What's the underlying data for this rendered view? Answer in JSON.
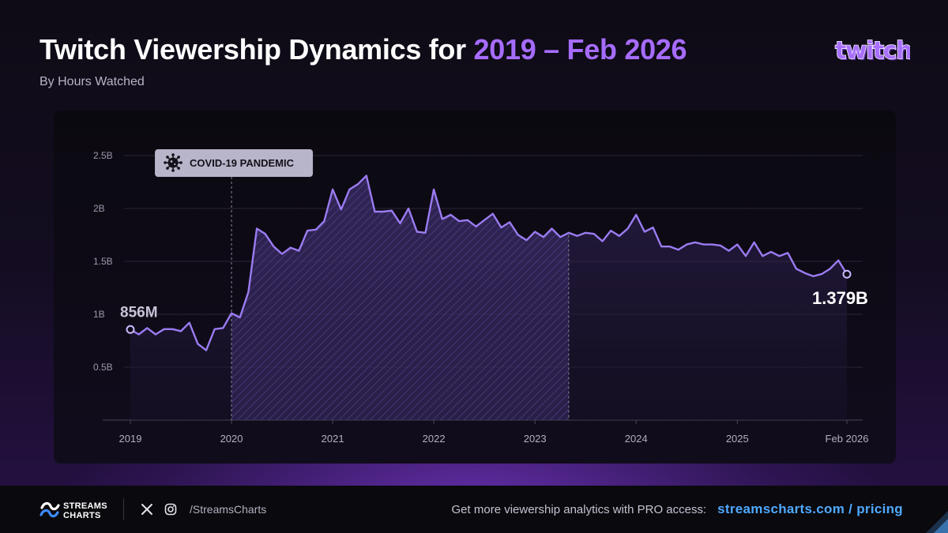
{
  "header": {
    "title_main": "Twitch Viewership Dynamics for ",
    "title_accent": "2019 – Feb 2026",
    "subtitle": "By Hours Watched",
    "logo": "twitch-logo"
  },
  "colors": {
    "accent": "#a66cff",
    "line": "#9b7cf2",
    "link": "#4fa9ff",
    "annotation_bg": "#b8b4c9"
  },
  "chart_data": {
    "type": "area",
    "title": "Twitch Viewership Dynamics for 2019 – Feb 2026",
    "subtitle": "By Hours Watched",
    "xlabel": "",
    "ylabel": "",
    "xlim": [
      "2019-01",
      "2026-02"
    ],
    "ylim": [
      0,
      2.5
    ],
    "y_ticks": [
      {
        "value": 0.5,
        "label": "0.5B"
      },
      {
        "value": 1,
        "label": "1B"
      },
      {
        "value": 1.5,
        "label": "1.5B"
      },
      {
        "value": 2,
        "label": "2B"
      },
      {
        "value": 2.5,
        "label": "2.5B"
      }
    ],
    "x_ticks": [
      {
        "value": "2019-01",
        "label": "2019"
      },
      {
        "value": "2020-01",
        "label": "2020"
      },
      {
        "value": "2021-01",
        "label": "2021"
      },
      {
        "value": "2022-01",
        "label": "2022"
      },
      {
        "value": "2023-01",
        "label": "2023"
      },
      {
        "value": "2024-01",
        "label": "2024"
      },
      {
        "value": "2025-01",
        "label": "2025"
      },
      {
        "value": "2026-02",
        "label": "Feb 2026"
      }
    ],
    "grid": true,
    "unit": "billion hours",
    "series": [
      {
        "x": [
          "2019-01",
          "2019-02",
          "2019-03",
          "2019-04",
          "2019-05",
          "2019-06",
          "2019-07",
          "2019-08",
          "2019-09",
          "2019-10",
          "2019-11",
          "2019-12",
          "2020-01",
          "2020-02",
          "2020-03",
          "2020-04",
          "2020-05",
          "2020-06",
          "2020-07",
          "2020-08",
          "2020-09",
          "2020-10",
          "2020-11",
          "2020-12",
          "2021-01",
          "2021-02",
          "2021-03",
          "2021-04",
          "2021-05",
          "2021-06",
          "2021-07",
          "2021-08",
          "2021-09",
          "2021-10",
          "2021-11",
          "2021-12",
          "2022-01",
          "2022-02",
          "2022-03",
          "2022-04",
          "2022-05",
          "2022-06",
          "2022-07",
          "2022-08",
          "2022-09",
          "2022-10",
          "2022-11",
          "2022-12",
          "2023-01",
          "2023-02",
          "2023-03",
          "2023-04",
          "2023-05",
          "2023-06",
          "2023-07",
          "2023-08",
          "2023-09",
          "2023-10",
          "2023-11",
          "2023-12",
          "2024-01",
          "2024-02",
          "2024-03",
          "2024-04",
          "2024-05",
          "2024-06",
          "2024-07",
          "2024-08",
          "2024-09",
          "2024-10",
          "2024-11",
          "2024-12",
          "2025-01",
          "2025-02",
          "2025-03",
          "2025-04",
          "2025-05",
          "2025-06",
          "2025-07",
          "2025-08",
          "2025-09",
          "2025-10",
          "2025-11",
          "2025-12",
          "2026-01",
          "2026-02"
        ],
        "values": [
          0.856,
          0.81,
          0.87,
          0.81,
          0.86,
          0.86,
          0.84,
          0.92,
          0.72,
          0.66,
          0.86,
          0.87,
          1.01,
          0.97,
          1.21,
          1.81,
          1.76,
          1.64,
          1.57,
          1.63,
          1.6,
          1.79,
          1.8,
          1.88,
          2.18,
          1.99,
          2.18,
          2.23,
          2.31,
          1.97,
          1.97,
          1.98,
          1.86,
          2.0,
          1.78,
          1.77,
          2.18,
          1.9,
          1.94,
          1.88,
          1.89,
          1.83,
          1.89,
          1.95,
          1.82,
          1.87,
          1.75,
          1.7,
          1.78,
          1.73,
          1.81,
          1.73,
          1.77,
          1.74,
          1.77,
          1.76,
          1.69,
          1.79,
          1.74,
          1.81,
          1.94,
          1.78,
          1.82,
          1.64,
          1.64,
          1.61,
          1.66,
          1.68,
          1.66,
          1.66,
          1.65,
          1.6,
          1.66,
          1.55,
          1.68,
          1.55,
          1.59,
          1.55,
          1.58,
          1.43,
          1.39,
          1.36,
          1.38,
          1.43,
          1.51,
          1.379
        ]
      }
    ],
    "labels": {
      "start": "856M",
      "end": "1.379B"
    },
    "annotations": [
      {
        "text": "COVID-19 PANDEMIC",
        "icon": "virus-icon",
        "period": [
          "2020-01",
          "2023-05"
        ]
      }
    ]
  },
  "footer": {
    "brand_line1": "STREAMS",
    "brand_line2": "CHARTS",
    "handle": "/StreamsCharts",
    "promo_text": "Get more viewership analytics with PRO access:",
    "promo_link": "streamscharts.com / pricing"
  }
}
